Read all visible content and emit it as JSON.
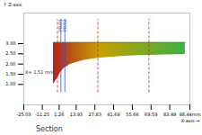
{
  "chart_data": {
    "type": "area",
    "y_label": "Z-axis",
    "x_label": "X-axis",
    "caption": "Section",
    "x": [
      -3,
      0,
      2,
      5,
      10,
      15,
      20,
      30,
      40,
      50,
      60,
      70,
      80,
      90,
      95
    ],
    "y1": [
      1.0,
      1.3,
      1.55,
      1.8,
      2.0,
      2.1,
      2.18,
      2.28,
      2.34,
      2.38,
      2.41,
      2.43,
      2.45,
      2.46,
      2.47
    ],
    "y2": [
      3.05,
      3.05,
      3.05,
      3.05,
      3.05,
      3.05,
      3.05,
      3.05,
      3.05,
      3.05,
      3.05,
      3.05,
      3.05,
      3.05,
      3.05
    ],
    "colors": [
      "#b22222",
      "#c8a000",
      "#3cb043"
    ],
    "xlim": [
      -25.03,
      98.44
    ],
    "xticks": [
      -25.03,
      -11.25,
      1.26,
      13.93,
      27.83,
      41.69,
      55.66,
      69.59,
      83.49,
      {
        "value": 98.44,
        "label": "98.44mm"
      }
    ],
    "ylim": [
      0,
      4.5
    ],
    "yticks": [
      {
        "value": 1,
        "label": "1.00"
      },
      {
        "value": 1.5,
        "label": "1.50"
      },
      {
        "value": 2,
        "label": "2.00"
      },
      {
        "value": 2.5,
        "label": "2.50"
      },
      {
        "value": 3,
        "label": "3.00"
      }
    ],
    "markers": [
      {
        "x": 2.53,
        "label": "PRO1",
        "color": "#3050d0",
        "line_style": "solid"
      },
      {
        "x": 5.5,
        "label": "PRO2",
        "color": "#3050d0",
        "line_style": "solid"
      },
      {
        "x": 0,
        "color": "#d02020",
        "line_style": "dashed"
      },
      {
        "x": 30,
        "color": "#d02020",
        "line_style": "dashed"
      },
      {
        "x": 68,
        "color": "#d02020",
        "line_style": "dashed"
      }
    ],
    "annotations": [
      {
        "text": "X= 1.51 m/s",
        "x": -24,
        "y": 1.6
      }
    ]
  }
}
